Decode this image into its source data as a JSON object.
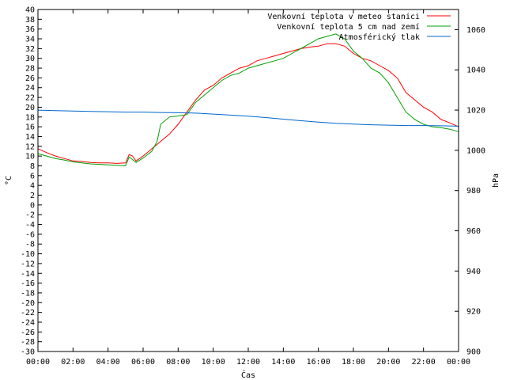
{
  "chart_data": {
    "type": "line",
    "title": "",
    "xlabel": "Čas",
    "ylabel": "°C",
    "y2label": "hPa",
    "x_ticks": [
      "00:00",
      "02:00",
      "04:00",
      "06:00",
      "08:00",
      "10:00",
      "12:00",
      "14:00",
      "16:00",
      "18:00",
      "20:00",
      "22:00",
      "00:00"
    ],
    "xlim_hours": [
      0,
      24
    ],
    "ylim": [
      -30,
      40
    ],
    "y_ticks": [
      -30,
      -28,
      -26,
      -24,
      -22,
      -20,
      -18,
      -16,
      -14,
      -12,
      -10,
      -8,
      -6,
      -4,
      -2,
      0,
      2,
      4,
      6,
      8,
      10,
      12,
      14,
      16,
      18,
      20,
      22,
      24,
      26,
      28,
      30,
      32,
      34,
      36,
      38,
      40
    ],
    "y2lim": [
      900,
      1070
    ],
    "y2_ticks": [
      900,
      920,
      940,
      960,
      980,
      1000,
      1020,
      1040,
      1060
    ],
    "legend_position": "top-right",
    "series": [
      {
        "name": "Venkovní teplota v meteo stanici",
        "color": "#ff0000",
        "axis": "left",
        "x": [
          0,
          0.5,
          1,
          1.5,
          2,
          2.5,
          3,
          3.5,
          4,
          4.5,
          5,
          5.2,
          5.4,
          5.6,
          6,
          6.5,
          7,
          7.5,
          8,
          8.5,
          9,
          9.5,
          10,
          10.5,
          11,
          11.5,
          12,
          12.5,
          13,
          13.5,
          14,
          14.5,
          15,
          15.5,
          16,
          16.5,
          17,
          17.5,
          18,
          18.5,
          19,
          19.5,
          20,
          20.5,
          21,
          21.5,
          22,
          22.5,
          23,
          23.5,
          24
        ],
        "values": [
          11.5,
          10.7,
          10,
          9.5,
          9,
          8.9,
          8.7,
          8.6,
          8.6,
          8.5,
          8.6,
          10.3,
          10,
          9,
          10,
          11.5,
          13,
          14.5,
          16.5,
          19,
          21.5,
          23.5,
          24.5,
          26,
          27,
          28,
          28.5,
          29.5,
          30,
          30.5,
          31,
          31.5,
          32,
          32.3,
          32.5,
          33,
          33,
          32.5,
          31,
          30,
          29.5,
          28.5,
          27.5,
          26,
          23,
          21.5,
          20,
          19,
          17.5,
          16.8,
          16
        ]
      },
      {
        "name": "Venkovní teplota 5 cm nad zemí",
        "color": "#00a000",
        "axis": "left",
        "x": [
          0,
          0.5,
          1,
          1.5,
          2,
          2.5,
          3,
          3.5,
          4,
          4.5,
          5,
          5.2,
          5.4,
          5.6,
          6,
          6.5,
          6.8,
          7,
          7.5,
          8,
          8.5,
          9,
          9.5,
          10,
          10.5,
          11,
          11.5,
          12,
          12.5,
          13,
          13.5,
          14,
          14.5,
          15,
          15.5,
          16,
          16.5,
          17,
          17.5,
          18,
          18.5,
          19,
          19.5,
          20,
          20.5,
          21,
          21.5,
          22,
          22.5,
          23,
          23.5,
          24
        ],
        "values": [
          10.5,
          10,
          9.5,
          9.2,
          8.8,
          8.6,
          8.4,
          8.3,
          8.2,
          8.1,
          8,
          9.8,
          9.3,
          8.7,
          9.6,
          11,
          13,
          16.5,
          18,
          18.2,
          18.5,
          21,
          22.5,
          24,
          25.5,
          26.5,
          27,
          28,
          28.5,
          29,
          29.5,
          30,
          31,
          32,
          33,
          34,
          34.5,
          35,
          34,
          31.5,
          30,
          28,
          27,
          25,
          22,
          19,
          17.5,
          16.5,
          16,
          15.8,
          15.5,
          15
        ]
      },
      {
        "name": "Atmosférický tlak",
        "color": "#0066cc",
        "axis": "right",
        "x": [
          0,
          1,
          2,
          3,
          4,
          5,
          6,
          7,
          8,
          9,
          10,
          11,
          12,
          13,
          14,
          15,
          16,
          17,
          18,
          19,
          20,
          21,
          22,
          23,
          24
        ],
        "values": [
          1020,
          1019.7,
          1019.5,
          1019.3,
          1019.2,
          1019,
          1019,
          1018.8,
          1018.7,
          1018.5,
          1018,
          1017.5,
          1017,
          1016.3,
          1015.5,
          1014.7,
          1014,
          1013.4,
          1013,
          1012.7,
          1012.5,
          1012.3,
          1012.3,
          1012.2,
          1012
        ]
      }
    ]
  }
}
